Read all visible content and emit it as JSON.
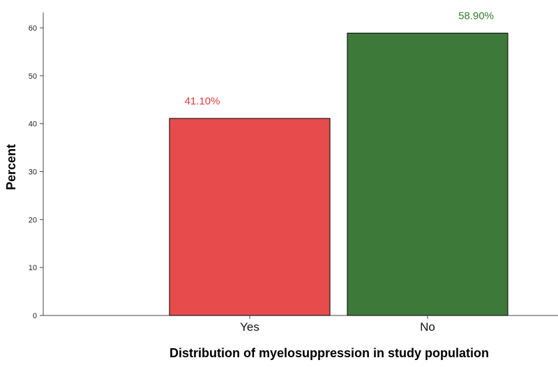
{
  "chart_data": {
    "type": "bar",
    "categories": [
      "Yes",
      "No"
    ],
    "values": [
      41.1,
      58.9
    ],
    "data_labels": [
      "41.10%",
      "58.90%"
    ],
    "bar_colors": [
      "#e84b4b",
      "#3d7a3a"
    ],
    "label_colors": [
      "#e23a3a",
      "#2f7d2b"
    ],
    "xlabel": "Distribution of myelosuppression in study population",
    "ylabel": "Percent",
    "ylim": [
      0,
      60
    ],
    "yticks": [
      0,
      10,
      20,
      30,
      40,
      50,
      60
    ],
    "grid": false,
    "legend": "none"
  }
}
